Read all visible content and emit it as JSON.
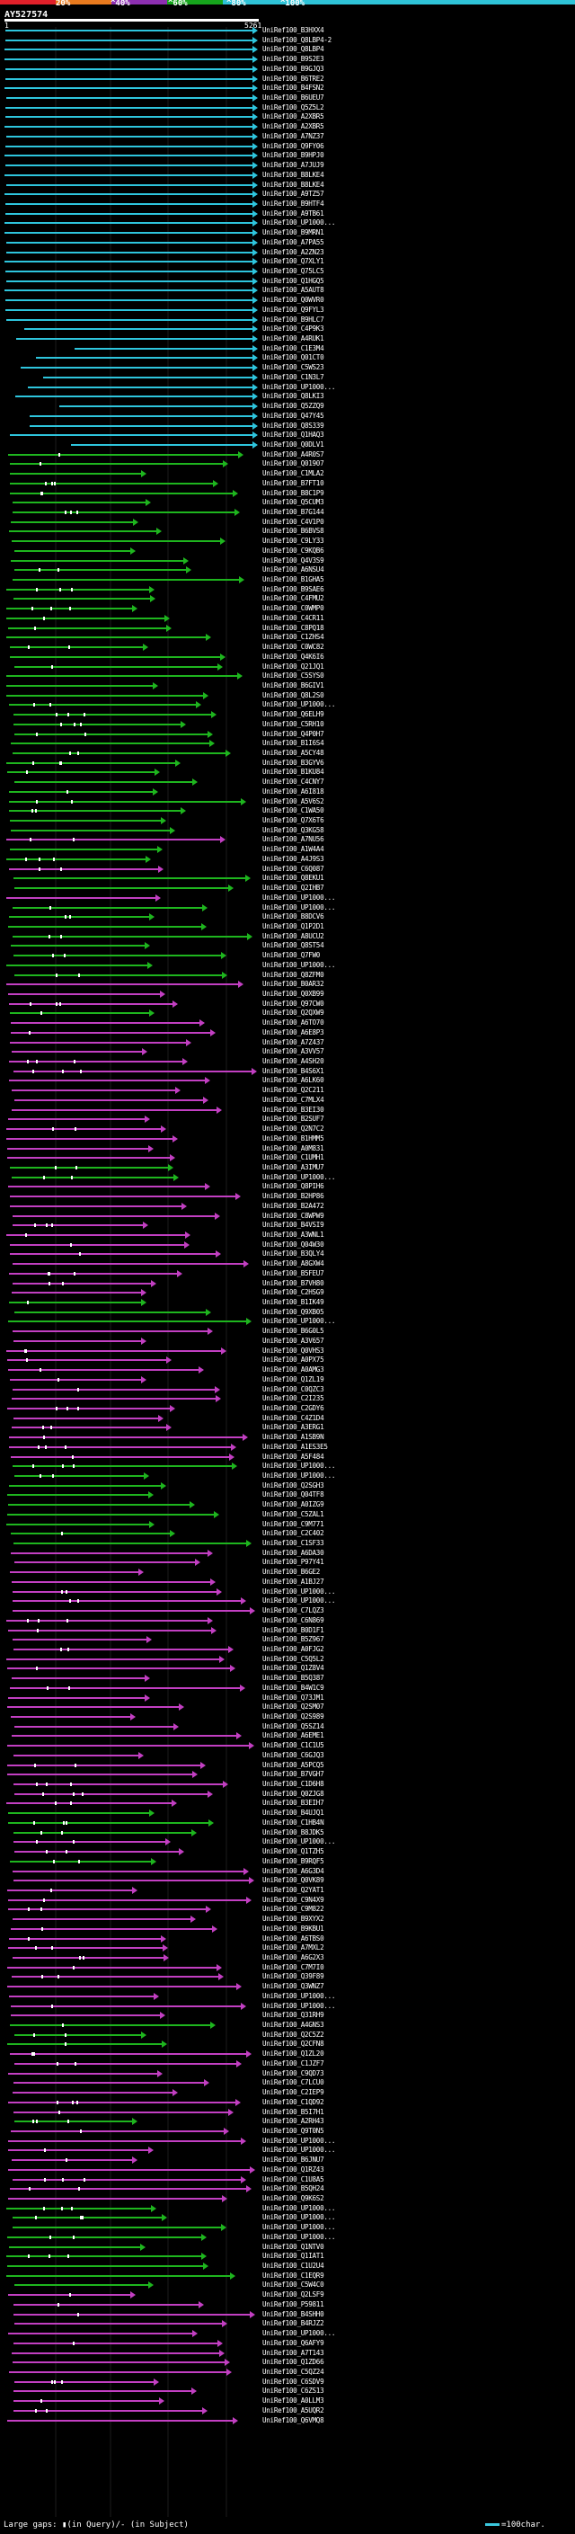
{
  "header": {
    "percent_ticks": [
      "20%",
      "^40%",
      "^60%",
      "^80%",
      "^100%"
    ],
    "band_colors": [
      "#e0202a",
      "#e87a1e",
      "#8c2fb0",
      "#16a41c",
      "#2fc3d8"
    ]
  },
  "query": {
    "name": "AY527574",
    "start": "1",
    "end": "5261"
  },
  "legend": {
    "text": "Large gaps: ▮(in Query)/- (in Subject)",
    "scale_text": "=100char.",
    "scale_color": "#3bc7dd"
  },
  "hits": [
    {
      "label": "UniRef100_B3HXX4",
      "color": "cyan"
    },
    {
      "label": "UniRef100_Q8LBP4-2",
      "color": "cyan"
    },
    {
      "label": "UniRef100_Q8LBP4",
      "color": "cyan"
    },
    {
      "label": "UniRef100_B9S2E3",
      "color": "cyan"
    },
    {
      "label": "UniRef100_B9GJQ3",
      "color": "cyan"
    },
    {
      "label": "UniRef100_B6TRE2",
      "color": "cyan"
    },
    {
      "label": "UniRef100_B4FSN2",
      "color": "cyan"
    },
    {
      "label": "UniRef100_B6UEU7",
      "color": "cyan"
    },
    {
      "label": "UniRef100_Q5Z5L2",
      "color": "cyan"
    },
    {
      "label": "UniRef100_A2XBR5",
      "color": "cyan"
    },
    {
      "label": "UniRef100_A2XBR5",
      "color": "cyan"
    },
    {
      "label": "UniRef100_A7NZ37",
      "color": "cyan"
    },
    {
      "label": "UniRef100_Q9FY06",
      "color": "cyan"
    },
    {
      "label": "UniRef100_B9HPJ0",
      "color": "cyan"
    },
    {
      "label": "UniRef100_A7JUJ9",
      "color": "cyan"
    },
    {
      "label": "UniRef100_B8LKE4",
      "color": "cyan"
    },
    {
      "label": "UniRef100_B8LKE4",
      "color": "cyan"
    },
    {
      "label": "UniRef100_A9TZ57",
      "color": "cyan"
    },
    {
      "label": "UniRef100_B9HTF4",
      "color": "cyan"
    },
    {
      "label": "UniRef100_A9TB61",
      "color": "cyan"
    },
    {
      "label": "UniRef100_UP1000...",
      "color": "cyan"
    },
    {
      "label": "UniRef100_B9MRN1",
      "color": "cyan"
    },
    {
      "label": "UniRef100_A7PA55",
      "color": "cyan"
    },
    {
      "label": "UniRef100_A2ZN23",
      "color": "cyan"
    },
    {
      "label": "UniRef100_Q7XLY1",
      "color": "cyan"
    },
    {
      "label": "UniRef100_Q75LC5",
      "color": "cyan"
    },
    {
      "label": "UniRef100_Q1HGQ5",
      "color": "cyan"
    },
    {
      "label": "UniRef100_A5AUT8",
      "color": "cyan"
    },
    {
      "label": "UniRef100_Q0WVR0",
      "color": "cyan"
    },
    {
      "label": "UniRef100_Q9FYL3",
      "color": "cyan"
    },
    {
      "label": "UniRef100_B9HLC7",
      "color": "cyan"
    },
    {
      "label": "UniRef100_C4P9K3",
      "color": "cyan"
    },
    {
      "label": "UniRef100_A4RUK1",
      "color": "cyan"
    },
    {
      "label": "UniRef100_C1E3M4",
      "color": "cyan"
    },
    {
      "label": "UniRef100_Q01CT0",
      "color": "cyan"
    },
    {
      "label": "UniRef100_C5WS23",
      "color": "cyan"
    },
    {
      "label": "UniRef100_C1N3L7",
      "color": "cyan"
    },
    {
      "label": "UniRef100_UP1000...",
      "color": "cyan"
    },
    {
      "label": "UniRef100_Q8LKI3",
      "color": "cyan"
    },
    {
      "label": "UniRef100_Q5ZZQ9",
      "color": "cyan"
    },
    {
      "label": "UniRef100_Q47Y45",
      "color": "cyan"
    },
    {
      "label": "UniRef100_Q8S339",
      "color": "cyan"
    },
    {
      "label": "UniRef100_Q1HAQ3",
      "color": "cyan"
    },
    {
      "label": "UniRef100_Q0DLV1",
      "color": "cyan"
    },
    {
      "label": "UniRef100_A4R0S7",
      "color": "green"
    },
    {
      "label": "UniRef100_Q01907",
      "color": "green"
    },
    {
      "label": "UniRef100_C1MLA2",
      "color": "green"
    },
    {
      "label": "UniRef100_B7FT10",
      "color": "green"
    },
    {
      "label": "UniRef100_B8C1P9",
      "color": "green"
    },
    {
      "label": "UniRef100_Q5CUM3",
      "color": "green"
    },
    {
      "label": "UniRef100_B7G144",
      "color": "green"
    },
    {
      "label": "UniRef100_C4V1P0",
      "color": "green"
    },
    {
      "label": "UniRef100_B6BVS8",
      "color": "green"
    },
    {
      "label": "UniRef100_C9LY33",
      "color": "green"
    },
    {
      "label": "UniRef100_C9KQB6",
      "color": "green"
    },
    {
      "label": "UniRef100_Q4V3S9",
      "color": "green"
    },
    {
      "label": "UniRef100_A6NSU4",
      "color": "green"
    },
    {
      "label": "UniRef100_B1GHA5",
      "color": "green"
    },
    {
      "label": "UniRef100_B9SAE6",
      "color": "green"
    },
    {
      "label": "UniRef100_C4FMU2",
      "color": "green"
    },
    {
      "label": "UniRef100_C0WMP0",
      "color": "green"
    },
    {
      "label": "UniRef100_C4CR11",
      "color": "green"
    },
    {
      "label": "UniRef100_C8PQ18",
      "color": "green"
    },
    {
      "label": "UniRef100_C1ZHS4",
      "color": "green"
    },
    {
      "label": "UniRef100_C0WC82",
      "color": "green"
    },
    {
      "label": "UniRef100_Q4K6I6",
      "color": "green"
    },
    {
      "label": "UniRef100_Q21JQ1",
      "color": "green"
    },
    {
      "label": "UniRef100_C5SYS0",
      "color": "green"
    },
    {
      "label": "UniRef100_B6GIV1",
      "color": "green"
    },
    {
      "label": "UniRef100_Q8L2S0",
      "color": "green"
    },
    {
      "label": "UniRef100_UP1000...",
      "color": "green"
    },
    {
      "label": "UniRef100_Q6ELH9",
      "color": "green"
    },
    {
      "label": "UniRef100_C5RH10",
      "color": "green"
    },
    {
      "label": "UniRef100_Q4P0H7",
      "color": "green"
    },
    {
      "label": "UniRef100_B1I6S4",
      "color": "green"
    },
    {
      "label": "UniRef100_A5CY48",
      "color": "green"
    },
    {
      "label": "UniRef100_B3GYV6",
      "color": "green"
    },
    {
      "label": "UniRef100_B1KU84",
      "color": "green"
    },
    {
      "label": "UniRef100_C4CNY7",
      "color": "green"
    },
    {
      "label": "UniRef100_A6I818",
      "color": "green"
    },
    {
      "label": "UniRef100_A5V6S2",
      "color": "green"
    },
    {
      "label": "UniRef100_C1WA50",
      "color": "green"
    },
    {
      "label": "UniRef100_Q7X6T6",
      "color": "green"
    },
    {
      "label": "UniRef100_Q3KG58",
      "color": "green"
    },
    {
      "label": "UniRef100_A7NU56",
      "color": "magenta"
    },
    {
      "label": "UniRef100_A1W4A4",
      "color": "green"
    },
    {
      "label": "UniRef100_A4J9S3",
      "color": "green"
    },
    {
      "label": "UniRef100_C6Q087",
      "color": "magenta"
    },
    {
      "label": "UniRef100_Q8EKU1",
      "color": "green"
    },
    {
      "label": "UniRef100_Q2IHB7",
      "color": "green"
    },
    {
      "label": "UniRef100_UP1000...",
      "color": "magenta"
    },
    {
      "label": "UniRef100_UP1000...",
      "color": "green"
    },
    {
      "label": "UniRef100_B8DCV6",
      "color": "green"
    },
    {
      "label": "UniRef100_Q1P2D1",
      "color": "green"
    },
    {
      "label": "UniRef100_A8UCU2",
      "color": "green"
    },
    {
      "label": "UniRef100_Q8ST54",
      "color": "green"
    },
    {
      "label": "UniRef100_Q7FW0",
      "color": "green"
    },
    {
      "label": "UniRef100_UP1000...",
      "color": "green"
    },
    {
      "label": "UniRef100_Q8ZFM0",
      "color": "green"
    },
    {
      "label": "UniRef100_B0AR32",
      "color": "magenta"
    },
    {
      "label": "UniRef100_Q0XB99",
      "color": "magenta"
    },
    {
      "label": "UniRef100_Q97CW0",
      "color": "magenta"
    },
    {
      "label": "UniRef100_Q2QXW9",
      "color": "green"
    },
    {
      "label": "UniRef100_A6TO70",
      "color": "magenta"
    },
    {
      "label": "UniRef100_A6E8P3",
      "color": "magenta"
    },
    {
      "label": "UniRef100_A7Z437",
      "color": "magenta"
    },
    {
      "label": "UniRef100_A3VV57",
      "color": "magenta"
    },
    {
      "label": "UniRef100_A4SH20",
      "color": "magenta"
    },
    {
      "label": "UniRef100_B4S6X1",
      "color": "magenta"
    },
    {
      "label": "UniRef100_A6LK60",
      "color": "magenta"
    },
    {
      "label": "UniRef100_Q2C211",
      "color": "magenta"
    },
    {
      "label": "UniRef100_C7MLX4",
      "color": "magenta"
    },
    {
      "label": "UniRef100_B3EI30",
      "color": "magenta"
    },
    {
      "label": "UniRef100_B2SUF7",
      "color": "magenta"
    },
    {
      "label": "UniRef100_Q2N7C2",
      "color": "magenta"
    },
    {
      "label": "UniRef100_B1HMM5",
      "color": "magenta"
    },
    {
      "label": "UniRef100_A0M831",
      "color": "magenta"
    },
    {
      "label": "UniRef100_C1UMH1",
      "color": "magenta"
    },
    {
      "label": "UniRef100_A3IMU7",
      "color": "green"
    },
    {
      "label": "UniRef100_UP1000...",
      "color": "green"
    },
    {
      "label": "UniRef100_Q8PIH6",
      "color": "magenta"
    },
    {
      "label": "UniRef100_B2HP86",
      "color": "magenta"
    },
    {
      "label": "UniRef100_B2A472",
      "color": "magenta"
    },
    {
      "label": "UniRef100_C8WPW9",
      "color": "magenta"
    },
    {
      "label": "UniRef100_B4VSI9",
      "color": "magenta"
    },
    {
      "label": "UniRef100_A3WNL1",
      "color": "magenta"
    },
    {
      "label": "UniRef100_Q04W30",
      "color": "magenta"
    },
    {
      "label": "UniRef100_B3QLY4",
      "color": "magenta"
    },
    {
      "label": "UniRef100_A8GXW4",
      "color": "magenta"
    },
    {
      "label": "UniRef100_B5FEU7",
      "color": "magenta"
    },
    {
      "label": "UniRef100_B7VH80",
      "color": "magenta"
    },
    {
      "label": "UniRef100_C2HSG9",
      "color": "magenta"
    },
    {
      "label": "UniRef100_B1IK49",
      "color": "green"
    },
    {
      "label": "UniRef100_Q9XB05",
      "color": "green"
    },
    {
      "label": "UniRef100_UP1000...",
      "color": "green"
    },
    {
      "label": "UniRef100_B6G0L5",
      "color": "magenta"
    },
    {
      "label": "UniRef100_A3V657",
      "color": "magenta"
    },
    {
      "label": "UniRef100_Q0VHS3",
      "color": "magenta"
    },
    {
      "label": "UniRef100_A0PX75",
      "color": "magenta"
    },
    {
      "label": "UniRef100_A0AMG3",
      "color": "magenta"
    },
    {
      "label": "UniRef100_Q1ZL19",
      "color": "magenta"
    },
    {
      "label": "UniRef100_C0QZC3",
      "color": "magenta"
    },
    {
      "label": "UniRef100_C2I235",
      "color": "magenta"
    },
    {
      "label": "UniRef100_C2GDY6",
      "color": "magenta"
    },
    {
      "label": "UniRef100_C4Z1D4",
      "color": "magenta"
    },
    {
      "label": "UniRef100_A3ERG1",
      "color": "magenta"
    },
    {
      "label": "UniRef100_A1SB9N",
      "color": "magenta"
    },
    {
      "label": "UniRef100_A1ES3E5",
      "color": "magenta"
    },
    {
      "label": "UniRef100_A5F484",
      "color": "magenta"
    },
    {
      "label": "UniRef100_UP1000...",
      "color": "green"
    },
    {
      "label": "UniRef100_UP1000...",
      "color": "green"
    },
    {
      "label": "UniRef100_Q2SGH3",
      "color": "green"
    },
    {
      "label": "UniRef100_Q04TF8",
      "color": "green"
    },
    {
      "label": "UniRef100_A0IZG9",
      "color": "green"
    },
    {
      "label": "UniRef100_C5ZAL1",
      "color": "green"
    },
    {
      "label": "UniRef100_C9M771",
      "color": "green"
    },
    {
      "label": "UniRef100_C2C402",
      "color": "green"
    },
    {
      "label": "UniRef100_C1SF33",
      "color": "green"
    },
    {
      "label": "UniRef100_A6DA30",
      "color": "magenta"
    },
    {
      "label": "UniRef100_P97Y41",
      "color": "magenta"
    },
    {
      "label": "UniRef100_B6GE2",
      "color": "magenta"
    },
    {
      "label": "UniRef100_A1BJ27",
      "color": "magenta"
    },
    {
      "label": "UniRef100_UP1000...",
      "color": "magenta"
    },
    {
      "label": "UniRef100_UP1000...",
      "color": "magenta"
    },
    {
      "label": "UniRef100_C7LQZ3",
      "color": "magenta"
    },
    {
      "label": "UniRef100_C6N869",
      "color": "magenta"
    },
    {
      "label": "UniRef100_B0D1F1",
      "color": "magenta"
    },
    {
      "label": "UniRef100_B5Z967",
      "color": "magenta"
    },
    {
      "label": "UniRef100_A0FJG2",
      "color": "magenta"
    },
    {
      "label": "UniRef100_C5Q5L2",
      "color": "magenta"
    },
    {
      "label": "UniRef100_Q1Z8V4",
      "color": "magenta"
    },
    {
      "label": "UniRef100_B5Q387",
      "color": "magenta"
    },
    {
      "label": "UniRef100_B4W1C9",
      "color": "magenta"
    },
    {
      "label": "UniRef100_Q73JM1",
      "color": "magenta"
    },
    {
      "label": "UniRef100_Q2SM07",
      "color": "magenta"
    },
    {
      "label": "UniRef100_Q2S989",
      "color": "magenta"
    },
    {
      "label": "UniRef100_Q5SZ14",
      "color": "magenta"
    },
    {
      "label": "UniRef100_A6EME1",
      "color": "magenta"
    },
    {
      "label": "UniRef100_C1C1U5",
      "color": "magenta"
    },
    {
      "label": "UniRef100_C6GJQ3",
      "color": "magenta"
    },
    {
      "label": "UniRef100_A5PCQ5",
      "color": "magenta"
    },
    {
      "label": "UniRef100_B7VGH7",
      "color": "magenta"
    },
    {
      "label": "UniRef100_C1D6H8",
      "color": "magenta"
    },
    {
      "label": "UniRef100_Q0ZJG8",
      "color": "magenta"
    },
    {
      "label": "UniRef100_B3EIH7",
      "color": "magenta"
    },
    {
      "label": "UniRef100_B4UJQ1",
      "color": "green"
    },
    {
      "label": "UniRef100_C1HB4N",
      "color": "green"
    },
    {
      "label": "UniRef100_B8JDK5",
      "color": "green"
    },
    {
      "label": "UniRef100_UP1000...",
      "color": "magenta"
    },
    {
      "label": "UniRef100_Q1TZH5",
      "color": "magenta"
    },
    {
      "label": "UniRef100_B9RQF5",
      "color": "green"
    },
    {
      "label": "UniRef100_A6G3D4",
      "color": "magenta"
    },
    {
      "label": "UniRef100_Q0VK89",
      "color": "magenta"
    },
    {
      "label": "UniRef100_Q2YAT1",
      "color": "magenta"
    },
    {
      "label": "UniRef100_C9N4X9",
      "color": "magenta"
    },
    {
      "label": "UniRef100_C9M822",
      "color": "magenta"
    },
    {
      "label": "UniRef100_B9XYX2",
      "color": "magenta"
    },
    {
      "label": "UniRef100_B9KBU1",
      "color": "magenta"
    },
    {
      "label": "UniRef100_A6TBS0",
      "color": "magenta"
    },
    {
      "label": "UniRef100_A7MXL2",
      "color": "magenta"
    },
    {
      "label": "UniRef100_A6G2X3",
      "color": "magenta"
    },
    {
      "label": "UniRef100_C7M7I0",
      "color": "magenta"
    },
    {
      "label": "UniRef100_Q39F89",
      "color": "magenta"
    },
    {
      "label": "UniRef100_Q3WNZ7",
      "color": "magenta"
    },
    {
      "label": "UniRef100_UP1000...",
      "color": "magenta"
    },
    {
      "label": "UniRef100_UP1000...",
      "color": "magenta"
    },
    {
      "label": "UniRef100_Q31RH9",
      "color": "magenta"
    },
    {
      "label": "UniRef100_A4GNS3",
      "color": "green"
    },
    {
      "label": "UniRef100_Q2C5Z2",
      "color": "green"
    },
    {
      "label": "UniRef100_Q2CFN8",
      "color": "green"
    },
    {
      "label": "UniRef100_Q1ZL20",
      "color": "magenta"
    },
    {
      "label": "UniRef100_C1JZF7",
      "color": "magenta"
    },
    {
      "label": "UniRef100_C9QD73",
      "color": "magenta"
    },
    {
      "label": "UniRef100_C7LCU0",
      "color": "magenta"
    },
    {
      "label": "UniRef100_C2IEP9",
      "color": "magenta"
    },
    {
      "label": "UniRef100_C1QD92",
      "color": "magenta"
    },
    {
      "label": "UniRef100_B5I7H1",
      "color": "magenta"
    },
    {
      "label": "UniRef100_A2RH43",
      "color": "green"
    },
    {
      "label": "UniRef100_Q9T0N5",
      "color": "magenta"
    },
    {
      "label": "UniRef100_UP1000...",
      "color": "magenta"
    },
    {
      "label": "UniRef100_UP1000...",
      "color": "magenta"
    },
    {
      "label": "UniRef100_B6JNU7",
      "color": "magenta"
    },
    {
      "label": "UniRef100_Q1RZ43",
      "color": "magenta"
    },
    {
      "label": "UniRef100_C1U8A5",
      "color": "magenta"
    },
    {
      "label": "UniRef100_B5QH24",
      "color": "magenta"
    },
    {
      "label": "UniRef100_Q9K6S2",
      "color": "magenta"
    },
    {
      "label": "UniRef100_UP1000...",
      "color": "green"
    },
    {
      "label": "UniRef100_UP1000...",
      "color": "green"
    },
    {
      "label": "UniRef100_UP1000...",
      "color": "green"
    },
    {
      "label": "UniRef100_UP1000...",
      "color": "green"
    },
    {
      "label": "UniRef100_Q1NTV0",
      "color": "green"
    },
    {
      "label": "UniRef100_Q1IAT1",
      "color": "green"
    },
    {
      "label": "UniRef100_C1U2U4",
      "color": "green"
    },
    {
      "label": "UniRef100_C1EQR9",
      "color": "green"
    },
    {
      "label": "UniRef100_C5W4C0",
      "color": "green"
    },
    {
      "label": "UniRef100_Q2LSF9",
      "color": "magenta"
    },
    {
      "label": "UniRef100_P59811",
      "color": "magenta"
    },
    {
      "label": "UniRef100_B4SHH0",
      "color": "magenta"
    },
    {
      "label": "UniRef100_B4RJZ2",
      "color": "magenta"
    },
    {
      "label": "UniRef100_UP1000...",
      "color": "magenta"
    },
    {
      "label": "UniRef100_Q6AFY9",
      "color": "magenta"
    },
    {
      "label": "UniRef100_A7T143",
      "color": "magenta"
    },
    {
      "label": "UniRef100_Q1ZD66",
      "color": "magenta"
    },
    {
      "label": "UniRef100_C5QZ24",
      "color": "magenta"
    },
    {
      "label": "UniRef100_C6SDV9",
      "color": "magenta"
    },
    {
      "label": "UniRef100_C6ZS13",
      "color": "magenta"
    },
    {
      "label": "UniRef100_A0LLM3",
      "color": "magenta"
    },
    {
      "label": "UniRef100_A5UQR2",
      "color": "magenta"
    },
    {
      "label": "UniRef100_Q6VMQ8",
      "color": "magenta"
    }
  ]
}
